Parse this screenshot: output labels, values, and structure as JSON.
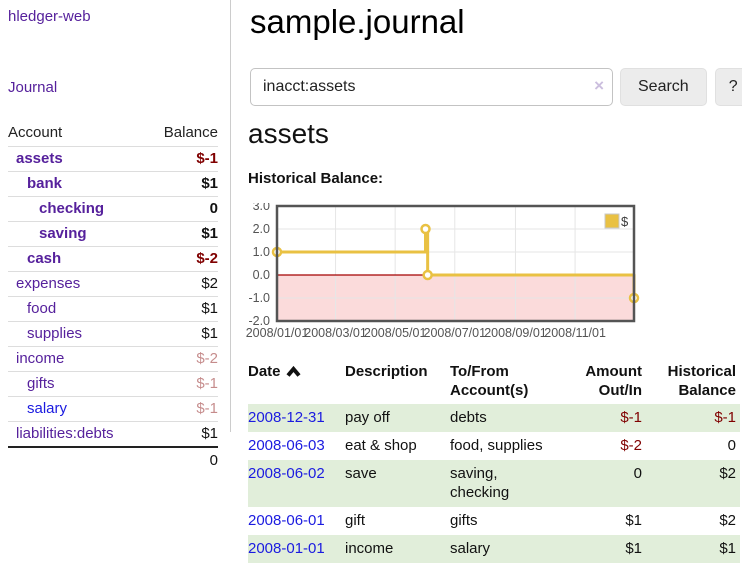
{
  "app": {
    "brand": "hledger-web",
    "nav": {
      "journal": "Journal"
    }
  },
  "sidebar": {
    "columns": {
      "account": "Account",
      "balance": "Balance"
    },
    "accounts": [
      {
        "name": "assets",
        "balance": "$-1"
      },
      {
        "name": "bank",
        "balance": "$1"
      },
      {
        "name": "checking",
        "balance": "0"
      },
      {
        "name": "saving",
        "balance": "$1"
      },
      {
        "name": "cash",
        "balance": "$-2"
      },
      {
        "name": "expenses",
        "balance": "$2"
      },
      {
        "name": "food",
        "balance": "$1"
      },
      {
        "name": "supplies",
        "balance": "$1"
      },
      {
        "name": "income",
        "balance": "$-2"
      },
      {
        "name": "gifts",
        "balance": "$-1"
      },
      {
        "name": "salary",
        "balance": "$-1"
      },
      {
        "name": "liabilities:debts",
        "balance": "$1"
      }
    ],
    "total": "0"
  },
  "header": {
    "title": "sample.journal"
  },
  "search": {
    "value": "inacct:assets",
    "clear": "×",
    "submit": "Search",
    "help": "?"
  },
  "account_view": {
    "heading": "assets",
    "chart_title": "Historical Balance:"
  },
  "chart_data": {
    "type": "line",
    "subtype": "stepped",
    "title": "Historical Balance",
    "grid": true,
    "legend": {
      "position": "top-right",
      "entries": [
        "$"
      ]
    },
    "ylim": [
      -2,
      3
    ],
    "yticks": [
      {
        "label": "3.0",
        "value": 3
      },
      {
        "label": "2.0",
        "value": 2
      },
      {
        "label": "1.0",
        "value": 1
      },
      {
        "label": "0.0",
        "value": 0
      },
      {
        "label": "-1.0",
        "value": -1
      },
      {
        "label": "-2.0",
        "value": -2
      }
    ],
    "xticks": [
      {
        "label": "2008/01/01",
        "x": 0
      },
      {
        "label": "2008/03/01",
        "x": 0.164
      },
      {
        "label": "2008/05/01",
        "x": 0.331
      },
      {
        "label": "2008/07/01",
        "x": 0.498
      },
      {
        "label": "2008/09/01",
        "x": 0.668
      },
      {
        "label": "2008/11/01",
        "x": 0.835
      }
    ],
    "series": [
      {
        "name": "$",
        "points": [
          {
            "date": "2008-01-01",
            "x": 0,
            "value": 1
          },
          {
            "date": "2008-06-01",
            "x": 0.416,
            "value": 2
          },
          {
            "date": "2008-06-03",
            "x": 0.422,
            "value": 0
          },
          {
            "date": "2008-12-31",
            "x": 1,
            "value": -1
          }
        ]
      }
    ],
    "colors": {
      "line": "#e9c143",
      "marker_fill": "#ffffff",
      "negative_region": "#fbdbdb",
      "zero_line": "#a40000",
      "grid": "#e6e6e6",
      "border": "#545454",
      "tick_text": "#545454"
    }
  },
  "register": {
    "columns": {
      "date": "Date",
      "description": "Description",
      "tofrom1": "To/From",
      "tofrom2": "Account(s)",
      "amount1": "Amount",
      "amount2": "Out/In",
      "hist1": "Historical",
      "hist2": "Balance"
    },
    "rows": [
      {
        "date": "2008-12-31",
        "description": "pay off",
        "accounts": "debts",
        "amount": "$-1",
        "balance": "$-1"
      },
      {
        "date": "2008-06-03",
        "description": "eat & shop",
        "accounts": "food, supplies",
        "amount": "$-2",
        "balance": "0"
      },
      {
        "date": "2008-06-02",
        "description": "save",
        "accounts": "saving, checking",
        "amount": "0",
        "balance": "$2"
      },
      {
        "date": "2008-06-01",
        "description": "gift",
        "accounts": "gifts",
        "amount": "$1",
        "balance": "$2"
      },
      {
        "date": "2008-01-01",
        "description": "income",
        "accounts": "salary",
        "amount": "$1",
        "balance": "$1"
      }
    ]
  }
}
